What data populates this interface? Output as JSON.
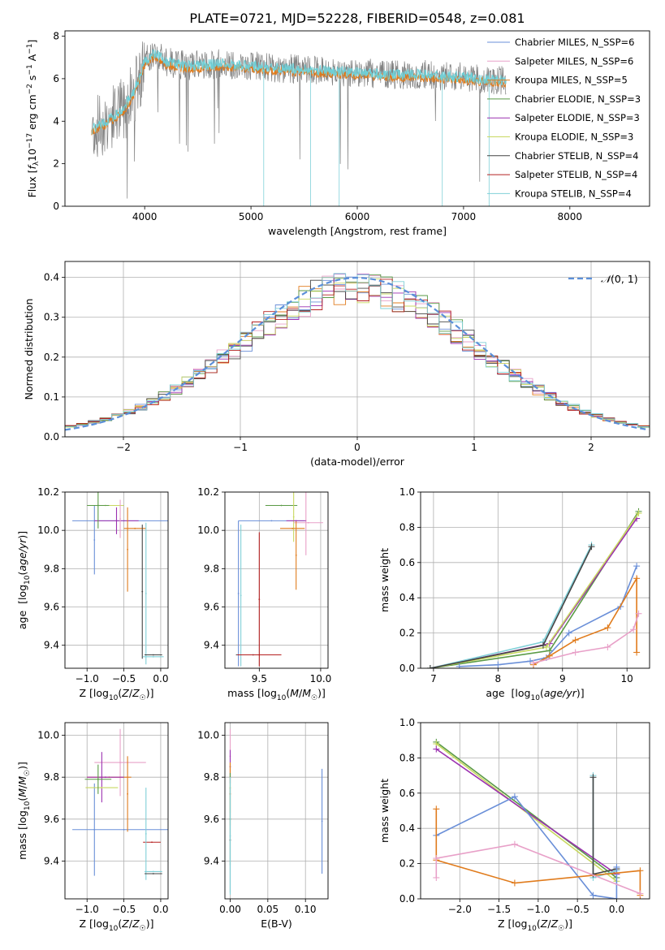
{
  "figure_title": "PLATE=0721, MJD=52228, FIBERID=0548, z=0.081",
  "chart_data": [
    {
      "id": "spectrum",
      "type": "line",
      "xlabel": "wavelength [Angstrom, rest frame]",
      "ylabel": "Flux [f_λ10^-17 erg cm^-2 s^-1 A^-1]",
      "xlim": [
        3250,
        8750
      ],
      "ylim": [
        0,
        8.25
      ],
      "xticks": [
        4000,
        5000,
        6000,
        7000,
        8000
      ],
      "yticks": [
        0,
        2,
        4,
        6,
        8
      ],
      "legend_position": "upper right",
      "legend": [
        {
          "name": "Chabrier MILES, N_SSP=6",
          "color": "#6a8fd8"
        },
        {
          "name": "Salpeter MILES, N_SSP=6",
          "color": "#e8a0c8"
        },
        {
          "name": "Kroupa MILES, N_SSP=5",
          "color": "#e07b1c"
        },
        {
          "name": "Chabrier ELODIE, N_SSP=3",
          "color": "#5a9a46"
        },
        {
          "name": "Salpeter ELODIE, N_SSP=3",
          "color": "#9b30b0"
        },
        {
          "name": "Kroupa ELODIE, N_SSP=3",
          "color": "#c8d860"
        },
        {
          "name": "Chabrier STELIB, N_SSP=4",
          "color": "#444444"
        },
        {
          "name": "Salpeter STELIB, N_SSP=4",
          "color": "#b52020"
        },
        {
          "name": "Kroupa STELIB, N_SSP=4",
          "color": "#80d0d8"
        }
      ],
      "data_color": "#808080",
      "model_color": "#6fcfd6",
      "data_sketch": {
        "x": [
          3500,
          3600,
          3700,
          3800,
          3900,
          4000,
          4100,
          4200,
          4400,
          4700,
          5000,
          5300,
          5600,
          6000,
          6300,
          6600,
          6900,
          7200,
          7400
        ],
        "y": [
          3.6,
          3.9,
          4.2,
          4.6,
          5.4,
          6.8,
          7.2,
          6.8,
          6.6,
          6.7,
          6.6,
          6.5,
          6.4,
          6.3,
          6.2,
          6.2,
          6.1,
          6.0,
          5.9
        ]
      }
    },
    {
      "id": "residuals",
      "type": "histogram",
      "xlabel": "(data-model)/error",
      "ylabel": "Normed distribution",
      "xlim": [
        -2.5,
        2.5
      ],
      "ylim": [
        0,
        0.44
      ],
      "xticks": [
        -2,
        -1,
        0,
        1,
        2
      ],
      "yticks": [
        0.0,
        0.1,
        0.2,
        0.3,
        0.4
      ],
      "bin_width": 0.1,
      "reference_curve": {
        "name": "N(0,1)",
        "style": "dashed",
        "color": "#5b8fd9"
      },
      "legend_position": "upper right"
    },
    {
      "id": "age_vs_Z",
      "type": "errorbar",
      "xlabel": "Z [log10(Z/Z☉)]",
      "ylabel": "age [log10(age/yr)]",
      "xlim": [
        -1.3,
        0.1
      ],
      "ylim": [
        9.28,
        10.2
      ],
      "xticks": [
        -1.0,
        -0.5,
        0.0
      ],
      "yticks": [
        9.4,
        9.6,
        9.8,
        10.0,
        10.2
      ],
      "points": [
        {
          "x": -0.5,
          "xerr": 0.7,
          "y": 10.05,
          "yerr": 0.0,
          "color": "#6a8fd8"
        },
        {
          "x": -0.9,
          "xerr": 0.0,
          "y": 9.95,
          "yerr": 0.18,
          "color": "#6a8fd8"
        },
        {
          "x": -0.75,
          "xerr": 0.25,
          "y": 10.13,
          "yerr": 0.0,
          "color": "#c8d860"
        },
        {
          "x": -0.6,
          "xerr": 0.3,
          "y": 10.05,
          "yerr": 0.07,
          "color": "#9b30b0"
        },
        {
          "x": -0.85,
          "xerr": 0.15,
          "y": 10.13,
          "yerr": 0.12,
          "color": "#5a9a46"
        },
        {
          "x": -0.45,
          "xerr": 0.0,
          "y": 9.9,
          "yerr": 0.22,
          "color": "#e07b1c"
        },
        {
          "x": -0.35,
          "xerr": 0.15,
          "y": 10.01,
          "yerr": 0.0,
          "color": "#e07b1c"
        },
        {
          "x": -0.55,
          "xerr": 0.0,
          "y": 10.06,
          "yerr": 0.1,
          "color": "#e8a0c8"
        },
        {
          "x": -0.2,
          "xerr": 0.0,
          "y": 9.67,
          "yerr": 0.37,
          "color": "#80d0d8"
        },
        {
          "x": -0.25,
          "xerr": 0.0,
          "y": 9.68,
          "yerr": 0.35,
          "color": "#444444"
        },
        {
          "x": -0.1,
          "xerr": 0.12,
          "y": 9.35,
          "yerr": 0.0,
          "color": "#444444"
        },
        {
          "x": -0.1,
          "xerr": 0.14,
          "y": 9.34,
          "yerr": 0.0,
          "color": "#80d0d8"
        }
      ]
    },
    {
      "id": "age_vs_mass",
      "type": "errorbar",
      "xlabel": "mass [log10(M/M☉)]",
      "ylabel": "",
      "xlim": [
        9.22,
        10.06
      ],
      "ylim": [
        9.28,
        10.2
      ],
      "xticks": [
        9.5,
        10.0
      ],
      "yticks": [
        9.4,
        9.6,
        9.8,
        10.0,
        10.2
      ],
      "points": [
        {
          "x": 9.6,
          "xerr": 0.27,
          "y": 10.05,
          "yerr": 0.0,
          "color": "#6a8fd8"
        },
        {
          "x": 9.33,
          "xerr": 0.0,
          "y": 9.67,
          "yerr": 0.38,
          "color": "#6a8fd8"
        },
        {
          "x": 9.68,
          "xerr": 0.13,
          "y": 10.13,
          "yerr": 0.0,
          "color": "#5a9a46"
        },
        {
          "x": 9.78,
          "xerr": 0.0,
          "y": 10.07,
          "yerr": 0.13,
          "color": "#c8d860"
        },
        {
          "x": 9.9,
          "xerr": 0.12,
          "y": 10.04,
          "yerr": 0.0,
          "color": "#e8a0c8"
        },
        {
          "x": 9.88,
          "xerr": 0.0,
          "y": 10.05,
          "yerr": 0.18,
          "color": "#e8a0c8"
        },
        {
          "x": 9.8,
          "xerr": 0.0,
          "y": 9.87,
          "yerr": 0.18,
          "color": "#e07b1c"
        },
        {
          "x": 9.77,
          "xerr": 0.1,
          "y": 10.01,
          "yerr": 0.0,
          "color": "#e07b1c"
        },
        {
          "x": 9.8,
          "xerr": 0.08,
          "y": 10.05,
          "yerr": 0.0,
          "color": "#9b30b0"
        },
        {
          "x": 9.45,
          "xerr": 0.14,
          "y": 9.35,
          "yerr": 0.0,
          "color": "#444444"
        },
        {
          "x": 9.5,
          "xerr": 0.0,
          "y": 9.64,
          "yerr": 0.35,
          "color": "#b52020"
        },
        {
          "x": 9.35,
          "xerr": 0.0,
          "y": 9.66,
          "yerr": 0.37,
          "color": "#80d0d8"
        },
        {
          "x": 9.5,
          "xerr": 0.18,
          "y": 9.35,
          "yerr": 0.0,
          "color": "#b52020"
        }
      ]
    },
    {
      "id": "massweight_vs_age",
      "type": "line",
      "xlabel": "age [log10(age/yr)]",
      "ylabel": "mass weight",
      "xlim": [
        6.8,
        10.35
      ],
      "ylim": [
        0,
        1.0
      ],
      "xticks": [
        7,
        8,
        9,
        10
      ],
      "yticks": [
        0.0,
        0.2,
        0.4,
        0.6,
        0.8,
        1.0
      ],
      "grid": true,
      "series": [
        {
          "color": "#5a9a46",
          "x": [
            6.95,
            8.8,
            10.18
          ],
          "y": [
            0.0,
            0.1,
            0.89
          ]
        },
        {
          "color": "#9b30b0",
          "x": [
            6.95,
            8.8,
            10.15
          ],
          "y": [
            0.0,
            0.14,
            0.85
          ]
        },
        {
          "color": "#c8d860",
          "x": [
            6.95,
            8.75,
            10.18
          ],
          "y": [
            0.0,
            0.12,
            0.88
          ]
        },
        {
          "color": "#80d0d8",
          "x": [
            6.95,
            8.7,
            9.45
          ],
          "y": [
            0.0,
            0.15,
            0.7
          ]
        },
        {
          "color": "#444444",
          "x": [
            6.95,
            8.7,
            9.45
          ],
          "y": [
            0.0,
            0.13,
            0.69
          ]
        },
        {
          "color": "#6a8fd8",
          "x": [
            7.4,
            8.0,
            8.5,
            8.75,
            9.1,
            9.9,
            10.15
          ],
          "y": [
            0.01,
            0.02,
            0.04,
            0.06,
            0.2,
            0.35,
            0.58
          ]
        },
        {
          "color": "#e07b1c",
          "x": [
            8.55,
            8.8,
            9.2,
            9.7,
            10.15,
            10.15
          ],
          "y": [
            0.02,
            0.07,
            0.16,
            0.23,
            0.51,
            0.09
          ]
        },
        {
          "color": "#e8a0c8",
          "x": [
            8.55,
            9.2,
            9.7,
            10.1,
            10.18
          ],
          "y": [
            0.03,
            0.09,
            0.12,
            0.22,
            0.31
          ]
        }
      ]
    },
    {
      "id": "mass_vs_Z",
      "type": "errorbar",
      "xlabel": "Z [log10(Z/Z☉)]",
      "ylabel": "mass [log10(M/M☉)]",
      "xlim": [
        -1.3,
        0.1
      ],
      "ylim": [
        9.22,
        10.06
      ],
      "xticks": [
        -1.0,
        -0.5,
        0.0
      ],
      "yticks": [
        9.4,
        9.6,
        9.8,
        10.0
      ],
      "points": [
        {
          "x": -0.55,
          "xerr": 0.35,
          "y": 9.87,
          "yerr": 0.0,
          "color": "#e8a0c8"
        },
        {
          "x": -0.55,
          "xerr": 0.0,
          "y": 9.87,
          "yerr": 0.16,
          "color": "#e8a0c8"
        },
        {
          "x": -0.5,
          "xerr": 0.7,
          "y": 9.55,
          "yerr": 0.0,
          "color": "#6a8fd8"
        },
        {
          "x": -0.9,
          "xerr": 0.0,
          "y": 9.55,
          "yerr": 0.22,
          "color": "#6a8fd8"
        },
        {
          "x": -0.7,
          "xerr": 0.3,
          "y": 9.8,
          "yerr": 0.0,
          "color": "#e07b1c"
        },
        {
          "x": -0.45,
          "xerr": 0.0,
          "y": 9.72,
          "yerr": 0.18,
          "color": "#e07b1c"
        },
        {
          "x": -0.75,
          "xerr": 0.25,
          "y": 9.8,
          "yerr": 0.0,
          "color": "#9b30b0"
        },
        {
          "x": -0.8,
          "xerr": 0.0,
          "y": 9.8,
          "yerr": 0.12,
          "color": "#9b30b0"
        },
        {
          "x": -0.8,
          "xerr": 0.22,
          "y": 9.75,
          "yerr": 0.0,
          "color": "#c8d860"
        },
        {
          "x": -0.85,
          "xerr": 0.18,
          "y": 9.79,
          "yerr": 0.07,
          "color": "#5a9a46"
        },
        {
          "x": -0.12,
          "xerr": 0.12,
          "y": 9.49,
          "yerr": 0.0,
          "color": "#b52020"
        },
        {
          "x": -0.2,
          "xerr": 0.0,
          "y": 9.53,
          "yerr": 0.22,
          "color": "#80d0d8"
        },
        {
          "x": -0.1,
          "xerr": 0.12,
          "y": 9.35,
          "yerr": 0.0,
          "color": "#80d0d8"
        },
        {
          "x": -0.1,
          "xerr": 0.12,
          "y": 9.34,
          "yerr": 0.0,
          "color": "#444444"
        }
      ]
    },
    {
      "id": "mass_vs_ebv",
      "type": "errorbar",
      "xlabel": "E(B-V)",
      "ylabel": "",
      "xlim": [
        -0.007,
        0.13
      ],
      "ylim": [
        9.22,
        10.06
      ],
      "xticks": [
        0.0,
        0.05,
        0.1
      ],
      "yticks": [
        9.4,
        9.6,
        9.8,
        10.0
      ],
      "points": [
        {
          "x": 0.0,
          "xerr": 0.0,
          "y": 9.9,
          "yerr": 0.13,
          "color": "#e8a0c8"
        },
        {
          "x": 0.0,
          "xerr": 0.0,
          "y": 9.85,
          "yerr": 0.08,
          "color": "#9b30b0"
        },
        {
          "x": 0.0,
          "xerr": 0.0,
          "y": 9.75,
          "yerr": 0.12,
          "color": "#c8d860"
        },
        {
          "x": 0.0,
          "xerr": 0.0,
          "y": 9.72,
          "yerr": 0.15,
          "color": "#e07b1c"
        },
        {
          "x": 0.0,
          "xerr": 0.0,
          "y": 9.6,
          "yerr": 0.22,
          "color": "#5a9a46"
        },
        {
          "x": 0.0,
          "xerr": 0.0,
          "y": 9.5,
          "yerr": 0.25,
          "color": "#444444"
        },
        {
          "x": 0.0,
          "xerr": 0.0,
          "y": 9.52,
          "yerr": 0.28,
          "color": "#80d0d8"
        },
        {
          "x": 0.122,
          "xerr": 0.0,
          "y": 9.59,
          "yerr": 0.25,
          "color": "#6a8fd8"
        }
      ]
    },
    {
      "id": "massweight_vs_Z",
      "type": "line",
      "xlabel": "Z [log10(Z/Z☉)]",
      "ylabel": "mass weight",
      "xlim": [
        -2.5,
        0.42
      ],
      "ylim": [
        0,
        1.0
      ],
      "xticks": [
        -2.0,
        -1.5,
        -1.0,
        -0.5,
        0.0
      ],
      "yticks": [
        0.0,
        0.2,
        0.4,
        0.6,
        0.8,
        1.0
      ],
      "grid": true,
      "series": [
        {
          "color": "#5a9a46",
          "x": [
            -2.3,
            0.0
          ],
          "y": [
            0.89,
            0.12
          ]
        },
        {
          "color": "#c8d860",
          "x": [
            -2.3,
            0.0
          ],
          "y": [
            0.88,
            0.1
          ]
        },
        {
          "color": "#9b30b0",
          "x": [
            -2.3,
            0.0
          ],
          "y": [
            0.85,
            0.14
          ]
        },
        {
          "color": "#80d0d8",
          "x": [
            -0.3,
            -0.3,
            0.0
          ],
          "y": [
            0.7,
            0.12,
            0.16
          ]
        },
        {
          "color": "#444444",
          "x": [
            -0.3,
            -0.3,
            0.0
          ],
          "y": [
            0.69,
            0.14,
            0.17
          ]
        },
        {
          "color": "#6a8fd8",
          "x": [
            -2.3,
            -1.3,
            -0.3,
            0.0,
            0.0
          ],
          "y": [
            0.36,
            0.58,
            0.02,
            0.0,
            0.18
          ]
        },
        {
          "color": "#e07b1c",
          "x": [
            -2.3,
            -2.3,
            -1.3,
            0.3,
            0.3
          ],
          "y": [
            0.51,
            0.22,
            0.09,
            0.16,
            0.02
          ]
        },
        {
          "color": "#e8a0c8",
          "x": [
            -2.3,
            -2.3,
            -1.3,
            0.3
          ],
          "y": [
            0.12,
            0.23,
            0.31,
            0.03
          ]
        }
      ]
    }
  ]
}
